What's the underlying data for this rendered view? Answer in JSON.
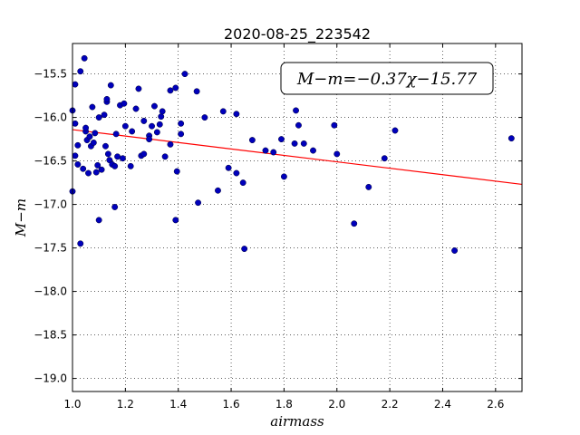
{
  "chart_data": {
    "type": "scatter",
    "title": "2020-08-25_223542",
    "xlabel": "airmass",
    "ylabel": "M−m",
    "xlim": [
      1.0,
      2.7
    ],
    "ylim": [
      -15.15,
      -19.15
    ],
    "y_inverted": true,
    "grid": true,
    "x_ticks": [
      "1.0",
      "1.2",
      "1.4",
      "1.6",
      "1.8",
      "2.0",
      "2.2",
      "2.4",
      "2.6"
    ],
    "y_ticks": [
      "−15.5",
      "−16.0",
      "−16.5",
      "−17.0",
      "−17.5",
      "−18.0",
      "−18.5",
      "−19.0"
    ],
    "annotation": "M−m=−0.37χ−15.77",
    "fit": {
      "slope": -0.37,
      "intercept": -15.77,
      "color": "#ff0000"
    },
    "point_color": "#0000bb",
    "points": [
      [
        1.0,
        -16.85
      ],
      [
        1.0,
        -15.92
      ],
      [
        1.01,
        -16.07
      ],
      [
        1.01,
        -16.44
      ],
      [
        1.01,
        -15.62
      ],
      [
        1.02,
        -16.54
      ],
      [
        1.02,
        -16.32
      ],
      [
        1.03,
        -15.47
      ],
      [
        1.03,
        -17.45
      ],
      [
        1.04,
        -16.59
      ],
      [
        1.045,
        -15.32
      ],
      [
        1.05,
        -16.16
      ],
      [
        1.05,
        -16.12
      ],
      [
        1.055,
        -16.26
      ],
      [
        1.06,
        -16.64
      ],
      [
        1.065,
        -16.22
      ],
      [
        1.07,
        -16.33
      ],
      [
        1.075,
        -15.88
      ],
      [
        1.08,
        -16.29
      ],
      [
        1.085,
        -16.18
      ],
      [
        1.09,
        -16.63
      ],
      [
        1.095,
        -16.55
      ],
      [
        1.1,
        -17.18
      ],
      [
        1.1,
        -16.0
      ],
      [
        1.11,
        -16.6
      ],
      [
        1.12,
        -15.97
      ],
      [
        1.125,
        -16.33
      ],
      [
        1.13,
        -15.82
      ],
      [
        1.13,
        -15.79
      ],
      [
        1.135,
        -16.42
      ],
      [
        1.14,
        -16.49
      ],
      [
        1.145,
        -15.63
      ],
      [
        1.15,
        -16.54
      ],
      [
        1.16,
        -16.56
      ],
      [
        1.16,
        -17.03
      ],
      [
        1.165,
        -16.19
      ],
      [
        1.17,
        -16.45
      ],
      [
        1.18,
        -15.86
      ],
      [
        1.19,
        -16.47
      ],
      [
        1.195,
        -15.84
      ],
      [
        1.2,
        -16.1
      ],
      [
        1.22,
        -16.56
      ],
      [
        1.225,
        -16.16
      ],
      [
        1.24,
        -15.9
      ],
      [
        1.25,
        -15.67
      ],
      [
        1.26,
        -16.44
      ],
      [
        1.27,
        -16.42
      ],
      [
        1.27,
        -16.04
      ],
      [
        1.29,
        -16.21
      ],
      [
        1.29,
        -16.25
      ],
      [
        1.3,
        -16.1
      ],
      [
        1.31,
        -15.87
      ],
      [
        1.32,
        -16.17
      ],
      [
        1.33,
        -16.08
      ],
      [
        1.335,
        -15.99
      ],
      [
        1.34,
        -15.93
      ],
      [
        1.35,
        -16.45
      ],
      [
        1.37,
        -16.31
      ],
      [
        1.37,
        -15.69
      ],
      [
        1.39,
        -17.18
      ],
      [
        1.39,
        -15.66
      ],
      [
        1.395,
        -16.62
      ],
      [
        1.41,
        -16.07
      ],
      [
        1.41,
        -16.19
      ],
      [
        1.425,
        -15.5
      ],
      [
        1.47,
        -15.7
      ],
      [
        1.475,
        -16.98
      ],
      [
        1.5,
        -16.0
      ],
      [
        1.55,
        -16.84
      ],
      [
        1.57,
        -15.93
      ],
      [
        1.59,
        -16.58
      ],
      [
        1.62,
        -16.64
      ],
      [
        1.62,
        -15.96
      ],
      [
        1.645,
        -16.75
      ],
      [
        1.65,
        -17.51
      ],
      [
        1.68,
        -16.26
      ],
      [
        1.73,
        -16.38
      ],
      [
        1.76,
        -16.4
      ],
      [
        1.79,
        -16.25
      ],
      [
        1.8,
        -16.68
      ],
      [
        1.84,
        -16.3
      ],
      [
        1.845,
        -15.92
      ],
      [
        1.855,
        -16.09
      ],
      [
        1.875,
        -16.3
      ],
      [
        1.91,
        -16.38
      ],
      [
        1.99,
        -16.09
      ],
      [
        2.0,
        -16.42
      ],
      [
        2.065,
        -17.22
      ],
      [
        2.12,
        -16.8
      ],
      [
        2.18,
        -16.47
      ],
      [
        2.22,
        -16.15
      ],
      [
        2.445,
        -17.53
      ],
      [
        2.66,
        -16.24
      ]
    ]
  }
}
